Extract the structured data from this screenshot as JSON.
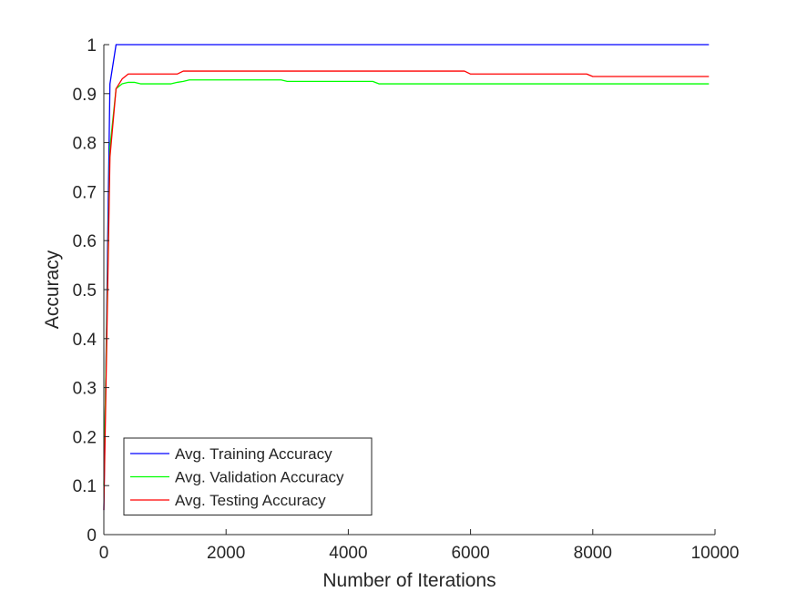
{
  "chart_data": {
    "type": "line",
    "xlabel": "Number of Iterations",
    "ylabel": "Accuracy",
    "xlim": [
      0,
      10000
    ],
    "ylim": [
      0,
      1
    ],
    "xticks": [
      "0",
      "2000",
      "4000",
      "6000",
      "8000",
      "10000"
    ],
    "yticks": [
      "0",
      "0.1",
      "0.2",
      "0.3",
      "0.4",
      "0.5",
      "0.6",
      "0.7",
      "0.8",
      "0.9",
      "1"
    ],
    "grid": false,
    "legend_position": "bottom-left",
    "series": [
      {
        "name": "Avg. Training Accuracy",
        "color": "#0000ff",
        "x": [
          0,
          100,
          200,
          300,
          1000,
          3000,
          5000,
          7000,
          9000,
          9900
        ],
        "y": [
          0.05,
          0.92,
          1.0,
          1.0,
          1.0,
          1.0,
          1.0,
          1.0,
          1.0,
          1.0
        ]
      },
      {
        "name": "Avg. Validation Accuracy",
        "color": "#00ff00",
        "x": [
          0,
          100,
          200,
          300,
          400,
          500,
          600,
          1100,
          1200,
          1300,
          1400,
          1500,
          2900,
          3000,
          4400,
          4500,
          6000,
          8000,
          9900
        ],
        "y": [
          0.1,
          0.79,
          0.91,
          0.92,
          0.923,
          0.923,
          0.92,
          0.92,
          0.923,
          0.925,
          0.928,
          0.928,
          0.928,
          0.925,
          0.925,
          0.92,
          0.92,
          0.92,
          0.92
        ]
      },
      {
        "name": "Avg. Testing Accuracy",
        "color": "#ff0000",
        "x": [
          0,
          100,
          200,
          300,
          400,
          1200,
          1300,
          5900,
          6000,
          7900,
          8000,
          9900
        ],
        "y": [
          0.05,
          0.77,
          0.91,
          0.93,
          0.94,
          0.94,
          0.946,
          0.946,
          0.94,
          0.94,
          0.935,
          0.935
        ]
      }
    ]
  }
}
